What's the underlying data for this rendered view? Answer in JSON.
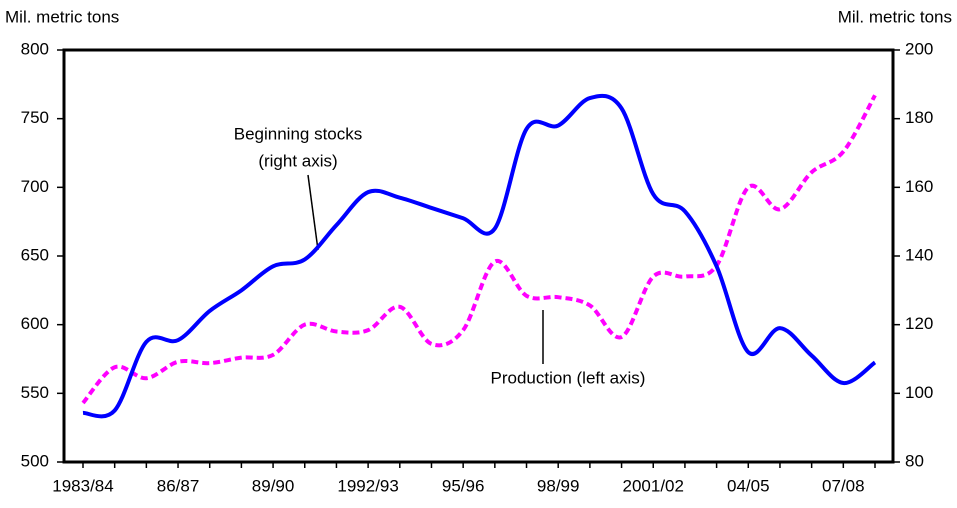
{
  "chart_data": {
    "type": "line",
    "y_label": "Mil. metric tons",
    "y2_label": "Mil. metric tons",
    "categories": [
      "1983/84",
      null,
      null,
      "86/87",
      null,
      null,
      "89/90",
      null,
      null,
      "1992/93",
      null,
      null,
      "95/96",
      null,
      null,
      "98/99",
      null,
      null,
      "2001/02",
      null,
      null,
      "04/05",
      null,
      null,
      "07/08",
      null
    ],
    "series": [
      {
        "name": "Production",
        "color": "#ff00ff",
        "dashed": true,
        "values": [
          543,
          569,
          561,
          573,
          572,
          576,
          578,
          600,
          595,
          596,
          613,
          586,
          596,
          646,
          621,
          620,
          614,
          591,
          635,
          635,
          643,
          700,
          684,
          711,
          726,
          767
        ]
      },
      {
        "name": "Beginning stocks",
        "color": "#0000ff",
        "axis": "y2",
        "values": [
          94.3,
          95,
          115,
          115.5,
          124,
          130,
          137,
          139,
          149,
          158.6,
          157,
          154,
          151,
          148,
          177,
          178,
          186,
          183,
          158,
          153,
          137,
          112,
          119,
          111,
          103,
          109
        ]
      }
    ],
    "annotations": [
      "Beginning stocks",
      "(right axis)",
      "Production (left axis)"
    ],
    "ylim": [
      500,
      800
    ],
    "yticks": [
      500,
      550,
      600,
      650,
      700,
      750,
      800
    ],
    "y2lim": [
      80,
      200
    ],
    "y2ticks": [
      80,
      100,
      120,
      140,
      160,
      180,
      200
    ]
  }
}
